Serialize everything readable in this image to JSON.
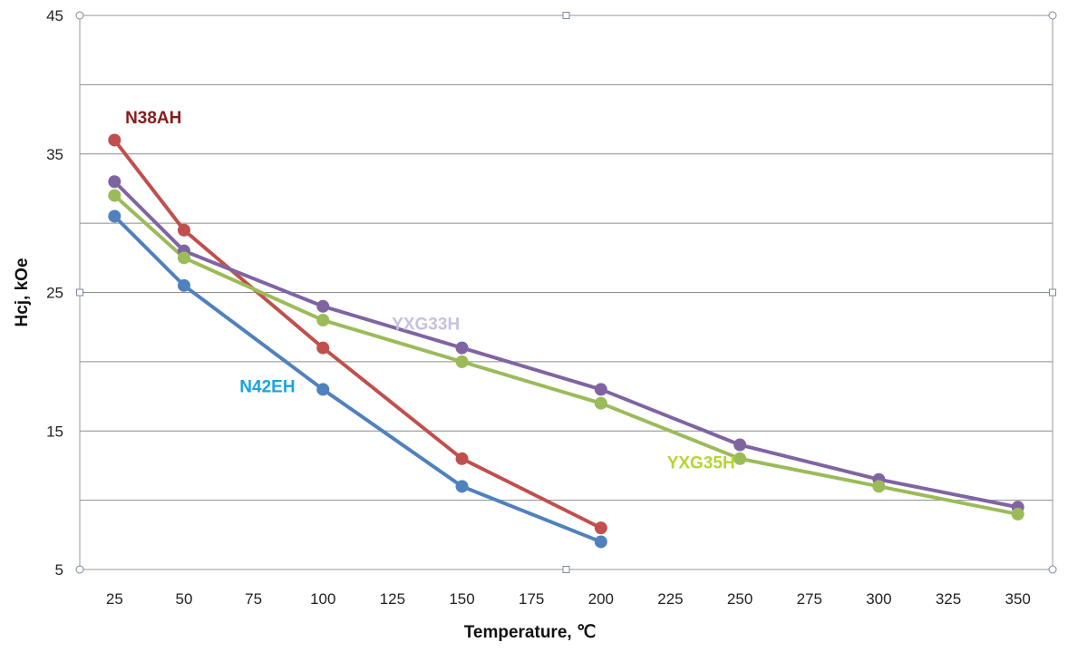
{
  "chart_data": {
    "type": "line",
    "title": "",
    "xlabel": "Temperature, ℃",
    "ylabel": "Hcj, kOe",
    "xlim": [
      12.5,
      362.5
    ],
    "ylim": [
      5,
      45
    ],
    "x_ticks": [
      25,
      50,
      75,
      100,
      125,
      150,
      175,
      200,
      225,
      250,
      275,
      300,
      325,
      350
    ],
    "y_ticks": [
      5,
      15,
      25,
      35,
      45
    ],
    "y_gridlines": [
      5,
      10,
      15,
      20,
      25,
      30,
      35,
      40,
      45
    ],
    "grid": true,
    "legend": "inline labels",
    "series": [
      {
        "name": "N38AH",
        "color": "#c0504d",
        "label_color": "#8b1a1a",
        "x": [
          25,
          50,
          100,
          150,
          200
        ],
        "y": [
          36,
          29.5,
          21,
          13,
          8
        ]
      },
      {
        "name": "N42EH",
        "color": "#4f81bd",
        "label_color": "#1aa3e0",
        "x": [
          25,
          50,
          100,
          150,
          200
        ],
        "y": [
          30.5,
          25.5,
          18,
          11,
          7
        ]
      },
      {
        "name": "YXG33H",
        "color": "#8064a2",
        "label_color": "#c8c0e0",
        "x": [
          25,
          50,
          100,
          150,
          200,
          250,
          300,
          350
        ],
        "y": [
          33,
          28,
          24,
          21,
          18,
          14,
          11.5,
          9.5
        ]
      },
      {
        "name": "YXG35H",
        "color": "#9bbb59",
        "label_color": "#b5d631",
        "x": [
          25,
          50,
          100,
          150,
          200,
          250,
          300,
          350
        ],
        "y": [
          32,
          27.5,
          23,
          20,
          17,
          13,
          11,
          9
        ]
      }
    ]
  }
}
